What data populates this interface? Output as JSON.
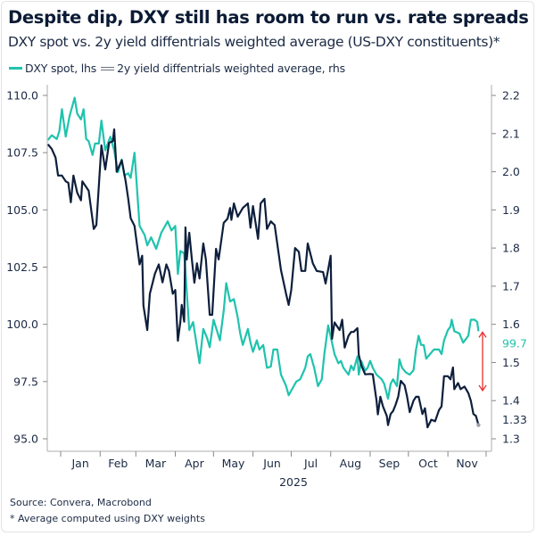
{
  "title": "Despite dip, DXY still has room to run vs. rate spreads",
  "subtitle": "DXY spot vs. 2y yield diffentrials weighted average (US-DXY constituents)*",
  "footer": {
    "source": "Source: Convera, Macrobond",
    "note": "* Average computed using DXY weights"
  },
  "colors": {
    "dxy": "#1fc3ad",
    "spread": "#0d1f3c",
    "arrow": "#e8302f",
    "axis": "#c8c8c8"
  },
  "chart_data": {
    "type": "line",
    "xlabel": "2025",
    "x_ticks": [
      "Jan",
      "Feb",
      "Mar",
      "Apr",
      "May",
      "Jun",
      "Jul",
      "Aug",
      "Sep",
      "Oct",
      "Nov"
    ],
    "left_axis": {
      "ticks": [
        "110.0",
        "107.5",
        "105.0",
        "102.5",
        "100.0",
        "97.5",
        "95.0"
      ],
      "range": [
        95,
        110
      ]
    },
    "right_axis": {
      "ticks": [
        "2.2",
        "2.1",
        "2.0",
        "1.9",
        "1.8",
        "1.7",
        "1.6",
        "1.5",
        "1.4",
        "1.3"
      ],
      "range": [
        1.3,
        2.2
      ]
    },
    "legend_position": "top-left",
    "grid": false,
    "end_labels": {
      "dxy": "99.7",
      "spread": "1.33"
    },
    "annotation": "red double-headed arrow between series end points",
    "series": [
      {
        "name": "DXY spot, lhs",
        "axis": "left",
        "points": [
          [
            "2024-12-22",
            108.05
          ],
          [
            "2024-12-25",
            108.26
          ],
          [
            "2024-12-29",
            108.1
          ],
          [
            "2024-12-31",
            108.45
          ],
          [
            "2025-01-02",
            109.4
          ],
          [
            "2025-01-05",
            108.2
          ],
          [
            "2025-01-08",
            109.1
          ],
          [
            "2025-01-12",
            109.9
          ],
          [
            "2025-01-14",
            109.2
          ],
          [
            "2025-01-17",
            108.95
          ],
          [
            "2025-01-19",
            109.4
          ],
          [
            "2025-01-21",
            108.1
          ],
          [
            "2025-01-23",
            108.0
          ],
          [
            "2025-01-26",
            107.4
          ],
          [
            "2025-01-28",
            107.9
          ],
          [
            "2025-01-31",
            107.9
          ],
          [
            "2025-02-02",
            108.9
          ],
          [
            "2025-02-05",
            107.6
          ],
          [
            "2025-02-09",
            108.2
          ],
          [
            "2025-02-12",
            107.6
          ],
          [
            "2025-02-15",
            106.65
          ],
          [
            "2025-02-18",
            107.2
          ],
          [
            "2025-02-20",
            106.5
          ],
          [
            "2025-02-23",
            106.6
          ],
          [
            "2025-02-25",
            106.4
          ],
          [
            "2025-02-28",
            107.5
          ],
          [
            "2025-03-04",
            104.3
          ],
          [
            "2025-03-08",
            103.9
          ],
          [
            "2025-03-10",
            103.45
          ],
          [
            "2025-03-13",
            103.8
          ],
          [
            "2025-03-17",
            103.3
          ],
          [
            "2025-03-21",
            104.0
          ],
          [
            "2025-03-26",
            104.5
          ],
          [
            "2025-03-29",
            104.1
          ],
          [
            "2025-04-01",
            104.3
          ],
          [
            "2025-04-03",
            102.2
          ],
          [
            "2025-04-05",
            103.2
          ],
          [
            "2025-04-08",
            103.1
          ],
          [
            "2025-04-10",
            101.4
          ],
          [
            "2025-04-12",
            99.75
          ],
          [
            "2025-04-15",
            100.1
          ],
          [
            "2025-04-17",
            99.37
          ],
          [
            "2025-04-20",
            98.3
          ],
          [
            "2025-04-23",
            99.8
          ],
          [
            "2025-04-26",
            99.4
          ],
          [
            "2025-04-28",
            99.0
          ],
          [
            "2025-05-01",
            100.2
          ],
          [
            "2025-05-06",
            99.3
          ],
          [
            "2025-05-09",
            100.6
          ],
          [
            "2025-05-11",
            101.8
          ],
          [
            "2025-05-14",
            101.0
          ],
          [
            "2025-05-17",
            101.1
          ],
          [
            "2025-05-20",
            100.3
          ],
          [
            "2025-05-22",
            99.6
          ],
          [
            "2025-05-24",
            99.1
          ],
          [
            "2025-05-28",
            99.8
          ],
          [
            "2025-05-30",
            99.2
          ],
          [
            "2025-06-01",
            98.8
          ],
          [
            "2025-06-04",
            99.3
          ],
          [
            "2025-06-06",
            98.9
          ],
          [
            "2025-06-09",
            99.1
          ],
          [
            "2025-06-12",
            98.1
          ],
          [
            "2025-06-15",
            98.15
          ],
          [
            "2025-06-17",
            98.9
          ],
          [
            "2025-06-20",
            98.9
          ],
          [
            "2025-06-23",
            97.8
          ],
          [
            "2025-06-27",
            97.3
          ],
          [
            "2025-06-29",
            96.9
          ],
          [
            "2025-07-02",
            97.2
          ],
          [
            "2025-07-05",
            97.5
          ],
          [
            "2025-07-08",
            97.6
          ],
          [
            "2025-07-12",
            98.1
          ],
          [
            "2025-07-14",
            98.6
          ],
          [
            "2025-07-16",
            98.7
          ],
          [
            "2025-07-19",
            98.1
          ],
          [
            "2025-07-22",
            97.3
          ],
          [
            "2025-07-25",
            97.6
          ],
          [
            "2025-07-27",
            98.7
          ],
          [
            "2025-07-30",
            99.95
          ],
          [
            "2025-08-02",
            99.2
          ],
          [
            "2025-08-04",
            98.7
          ],
          [
            "2025-08-07",
            98.3
          ],
          [
            "2025-08-09",
            98.4
          ],
          [
            "2025-08-11",
            98.1
          ],
          [
            "2025-08-15",
            97.8
          ],
          [
            "2025-08-17",
            98.2
          ],
          [
            "2025-08-19",
            98.0
          ],
          [
            "2025-08-22",
            98.6
          ],
          [
            "2025-08-23",
            97.8
          ],
          [
            "2025-08-25",
            98.4
          ],
          [
            "2025-08-28",
            97.97
          ],
          [
            "2025-08-30",
            98.1
          ],
          [
            "2025-09-01",
            98.4
          ],
          [
            "2025-09-03",
            98.1
          ],
          [
            "2025-09-06",
            97.8
          ],
          [
            "2025-09-10",
            97.6
          ],
          [
            "2025-09-12",
            97.4
          ],
          [
            "2025-09-15",
            96.75
          ],
          [
            "2025-09-17",
            97.4
          ],
          [
            "2025-09-19",
            97.6
          ],
          [
            "2025-09-22",
            97.3
          ],
          [
            "2025-09-24",
            98.47
          ],
          [
            "2025-09-26",
            98.1
          ],
          [
            "2025-09-29",
            97.9
          ],
          [
            "2025-10-02",
            97.8
          ],
          [
            "2025-10-05",
            98.0
          ],
          [
            "2025-10-07",
            98.9
          ],
          [
            "2025-10-09",
            99.5
          ],
          [
            "2025-10-11",
            99.1
          ],
          [
            "2025-10-13",
            99.1
          ],
          [
            "2025-10-15",
            98.5
          ],
          [
            "2025-10-18",
            98.7
          ],
          [
            "2025-10-21",
            98.9
          ],
          [
            "2025-10-25",
            98.9
          ],
          [
            "2025-10-27",
            98.7
          ],
          [
            "2025-10-29",
            99.3
          ],
          [
            "2025-11-01",
            99.75
          ],
          [
            "2025-11-03",
            99.9
          ],
          [
            "2025-11-04",
            100.2
          ],
          [
            "2025-11-06",
            99.7
          ],
          [
            "2025-11-10",
            99.6
          ],
          [
            "2025-11-13",
            99.2
          ],
          [
            "2025-11-17",
            99.5
          ],
          [
            "2025-11-19",
            100.2
          ],
          [
            "2025-11-22",
            100.2
          ],
          [
            "2025-11-24",
            100.1
          ],
          [
            "2025-11-25",
            99.7
          ]
        ]
      },
      {
        "name": "2y yield diffentrials weighted average, rhs",
        "axis": "right",
        "points": [
          [
            "2024-12-22",
            2.072
          ],
          [
            "2024-12-25",
            2.06
          ],
          [
            "2024-12-28",
            2.037
          ],
          [
            "2024-12-30",
            1.99
          ],
          [
            "2025-01-02",
            1.99
          ],
          [
            "2025-01-05",
            1.975
          ],
          [
            "2025-01-07",
            1.971
          ],
          [
            "2025-01-09",
            1.92
          ],
          [
            "2025-01-11",
            1.99
          ],
          [
            "2025-01-14",
            1.945
          ],
          [
            "2025-01-17",
            1.925
          ],
          [
            "2025-01-18",
            1.975
          ],
          [
            "2025-01-23",
            1.95
          ],
          [
            "2025-01-27",
            1.85
          ],
          [
            "2025-01-29",
            1.86
          ],
          [
            "2025-02-02",
            2.069
          ],
          [
            "2025-02-05",
            2.006
          ],
          [
            "2025-02-08",
            2.076
          ],
          [
            "2025-02-11",
            2.08
          ],
          [
            "2025-02-12",
            2.111
          ],
          [
            "2025-02-14",
            2.0
          ],
          [
            "2025-02-18",
            2.03
          ],
          [
            "2025-02-21",
            1.976
          ],
          [
            "2025-02-23",
            1.93
          ],
          [
            "2025-02-25",
            1.878
          ],
          [
            "2025-02-28",
            1.858
          ],
          [
            "2025-03-04",
            1.757
          ],
          [
            "2025-03-06",
            1.78
          ],
          [
            "2025-03-07",
            1.649
          ],
          [
            "2025-03-10",
            1.585
          ],
          [
            "2025-03-12",
            1.68
          ],
          [
            "2025-03-16",
            1.733
          ],
          [
            "2025-03-19",
            1.757
          ],
          [
            "2025-03-22",
            1.71
          ],
          [
            "2025-03-25",
            1.757
          ],
          [
            "2025-03-27",
            1.74
          ],
          [
            "2025-03-30",
            1.68
          ],
          [
            "2025-04-01",
            1.69
          ],
          [
            "2025-04-03",
            1.557
          ],
          [
            "2025-04-05",
            1.607
          ],
          [
            "2025-04-06",
            1.651
          ],
          [
            "2025-04-08",
            1.607
          ],
          [
            "2025-04-09",
            1.854
          ],
          [
            "2025-04-10",
            1.77
          ],
          [
            "2025-04-12",
            1.84
          ],
          [
            "2025-04-14",
            1.77
          ],
          [
            "2025-04-16",
            1.709
          ],
          [
            "2025-04-18",
            1.76
          ],
          [
            "2025-04-20",
            1.72
          ],
          [
            "2025-04-23",
            1.812
          ],
          [
            "2025-04-25",
            1.77
          ],
          [
            "2025-04-28",
            1.625
          ],
          [
            "2025-04-30",
            1.625
          ],
          [
            "2025-05-03",
            1.798
          ],
          [
            "2025-05-05",
            1.77
          ],
          [
            "2025-05-09",
            1.866
          ],
          [
            "2025-05-12",
            1.877
          ],
          [
            "2025-05-14",
            1.905
          ],
          [
            "2025-05-15",
            1.874
          ],
          [
            "2025-05-17",
            1.917
          ],
          [
            "2025-05-20",
            1.882
          ],
          [
            "2025-05-24",
            1.905
          ],
          [
            "2025-05-28",
            1.917
          ],
          [
            "2025-05-30",
            1.853
          ],
          [
            "2025-06-01",
            1.91
          ],
          [
            "2025-06-05",
            1.824
          ],
          [
            "2025-06-07",
            1.917
          ],
          [
            "2025-06-10",
            1.929
          ],
          [
            "2025-06-12",
            1.85
          ],
          [
            "2025-06-15",
            1.87
          ],
          [
            "2025-06-18",
            1.86
          ],
          [
            "2025-06-23",
            1.742
          ],
          [
            "2025-06-27",
            1.679
          ],
          [
            "2025-06-29",
            1.651
          ],
          [
            "2025-07-01",
            1.69
          ],
          [
            "2025-07-04",
            1.8
          ],
          [
            "2025-07-07",
            1.79
          ],
          [
            "2025-07-09",
            1.74
          ],
          [
            "2025-07-12",
            1.74
          ],
          [
            "2025-07-14",
            1.812
          ],
          [
            "2025-07-18",
            1.76
          ],
          [
            "2025-07-21",
            1.74
          ],
          [
            "2025-07-26",
            1.737
          ],
          [
            "2025-07-28",
            1.707
          ],
          [
            "2025-08-01",
            1.78
          ],
          [
            "2025-08-02",
            1.562
          ],
          [
            "2025-08-04",
            1.605
          ],
          [
            "2025-08-08",
            1.585
          ],
          [
            "2025-08-10",
            1.612
          ],
          [
            "2025-08-12",
            1.539
          ],
          [
            "2025-08-15",
            1.57
          ],
          [
            "2025-08-17",
            1.58
          ],
          [
            "2025-08-19",
            1.58
          ],
          [
            "2025-08-22",
            1.59
          ],
          [
            "2025-08-23",
            1.52
          ],
          [
            "2025-08-25",
            1.493
          ],
          [
            "2025-08-28",
            1.469
          ],
          [
            "2025-09-01",
            1.47
          ],
          [
            "2025-09-03",
            1.469
          ],
          [
            "2025-09-06",
            1.4
          ],
          [
            "2025-09-07",
            1.364
          ],
          [
            "2025-09-09",
            1.41
          ],
          [
            "2025-09-11",
            1.385
          ],
          [
            "2025-09-14",
            1.36
          ],
          [
            "2025-09-15",
            1.336
          ],
          [
            "2025-09-17",
            1.365
          ],
          [
            "2025-09-19",
            1.373
          ],
          [
            "2025-09-21",
            1.39
          ],
          [
            "2025-09-23",
            1.41
          ],
          [
            "2025-09-25",
            1.452
          ],
          [
            "2025-09-28",
            1.44
          ],
          [
            "2025-09-30",
            1.41
          ],
          [
            "2025-10-02",
            1.37
          ],
          [
            "2025-10-05",
            1.4
          ],
          [
            "2025-10-07",
            1.41
          ],
          [
            "2025-10-09",
            1.41
          ],
          [
            "2025-10-12",
            1.365
          ],
          [
            "2025-10-14",
            1.38
          ],
          [
            "2025-10-16",
            1.33
          ],
          [
            "2025-10-19",
            1.35
          ],
          [
            "2025-10-22",
            1.346
          ],
          [
            "2025-10-25",
            1.375
          ],
          [
            "2025-10-27",
            1.385
          ],
          [
            "2025-10-29",
            1.464
          ],
          [
            "2025-11-01",
            1.464
          ],
          [
            "2025-11-03",
            1.456
          ],
          [
            "2025-11-05",
            1.487
          ],
          [
            "2025-11-06",
            1.43
          ],
          [
            "2025-11-09",
            1.446
          ],
          [
            "2025-11-11",
            1.43
          ],
          [
            "2025-11-14",
            1.437
          ],
          [
            "2025-11-17",
            1.42
          ],
          [
            "2025-11-19",
            1.4
          ],
          [
            "2025-11-21",
            1.365
          ],
          [
            "2025-11-23",
            1.36
          ],
          [
            "2025-11-25",
            1.336
          ]
        ]
      }
    ]
  }
}
